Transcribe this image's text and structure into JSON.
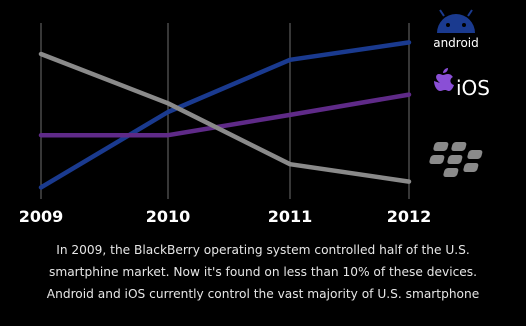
{
  "chart_data": {
    "type": "line",
    "title": "",
    "xlabel": "",
    "ylabel": "",
    "x": [
      "2009",
      "2010",
      "2011",
      "2012"
    ],
    "ylim": [
      0,
      60
    ],
    "grid": "vertical",
    "legend": "right",
    "series": [
      {
        "name": "android",
        "color": "#1a3a8f",
        "values": [
          4,
          30,
          48,
          54
        ]
      },
      {
        "name": "iOS",
        "color": "#5f2a88",
        "values": [
          22,
          22,
          29,
          36
        ]
      },
      {
        "name": "BlackBerry",
        "color": "#8a8a8a",
        "values": [
          50,
          33,
          12,
          6
        ]
      }
    ]
  },
  "legend": {
    "android": {
      "label": "android",
      "icon": "android-robot-icon"
    },
    "ios": {
      "label": "iOS",
      "icon": "apple-icon"
    },
    "blackberry": {
      "icon": "blackberry-logo-icon"
    }
  },
  "caption": {
    "line1": "In 2009, the BlackBerry operating system controlled half of the  U.S.",
    "line2": "smartphine market. Now it's found on less than 10% of these devices.",
    "line3": "Android and iOS currently control the vast majority of U.S. smartphone"
  }
}
